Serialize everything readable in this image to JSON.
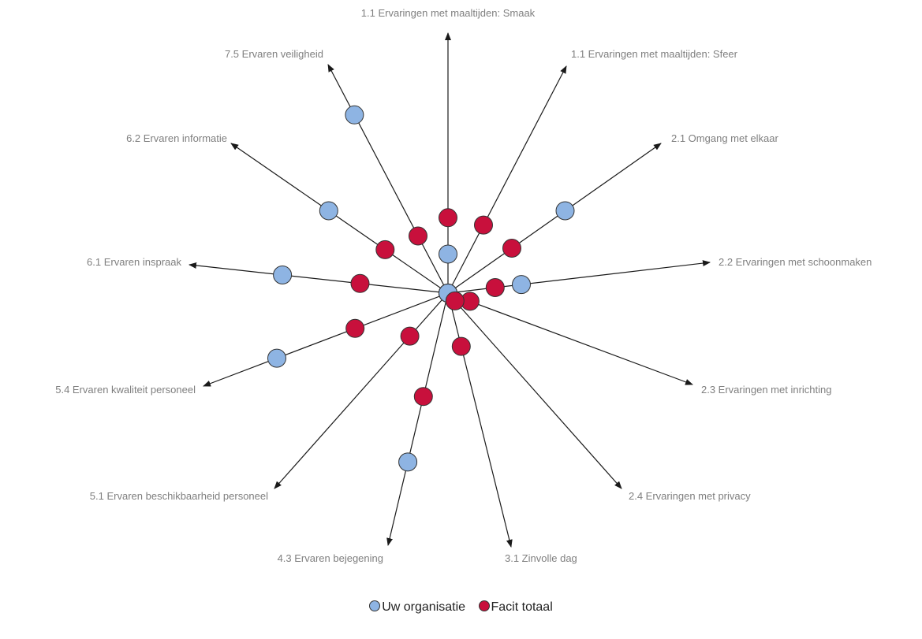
{
  "chart_data": {
    "type": "radial-scatter",
    "title": "",
    "axes": [
      "1.1 Ervaringen met maaltijden: Smaak",
      "1.1 Ervaringen met maaltijden: Sfeer",
      "2.1 Omgang met elkaar",
      "2.2 Ervaringen met schoonmaken",
      "2.3 Ervaringen met inrichting",
      "2.4 Ervaringen met privacy",
      "3.1 Zinvolle dag",
      "4.3 Ervaren bejegening",
      "5.1 Ervaren beschikbaarheid personeel",
      "5.4 Ervaren kwaliteit personeel",
      "6.1 Ervaren inspraak",
      "6.2 Ervaren informatie",
      "7.5 Ervaren veiligheid"
    ],
    "series": [
      {
        "name": "Uw organisatie",
        "color": "#8eb4e3",
        "values": [
          0.15,
          0.0,
          0.55,
          0.28,
          0.0,
          0.0,
          0.0,
          0.67,
          0.0,
          0.7,
          0.64,
          0.55,
          0.78
        ]
      },
      {
        "name": "Facit totaal",
        "color": "#c8103c",
        "values": [
          0.29,
          0.3,
          0.3,
          0.18,
          0.09,
          0.04,
          0.21,
          0.41,
          0.22,
          0.38,
          0.34,
          0.29,
          0.25
        ]
      }
    ],
    "range": [
      0,
      1
    ],
    "legend_position": "bottom-center",
    "grid": false
  },
  "legend": {
    "items": [
      {
        "label": "Uw organisatie",
        "color": "#8eb4e3"
      },
      {
        "label": "Facit totaal",
        "color": "#c8103c"
      }
    ]
  }
}
